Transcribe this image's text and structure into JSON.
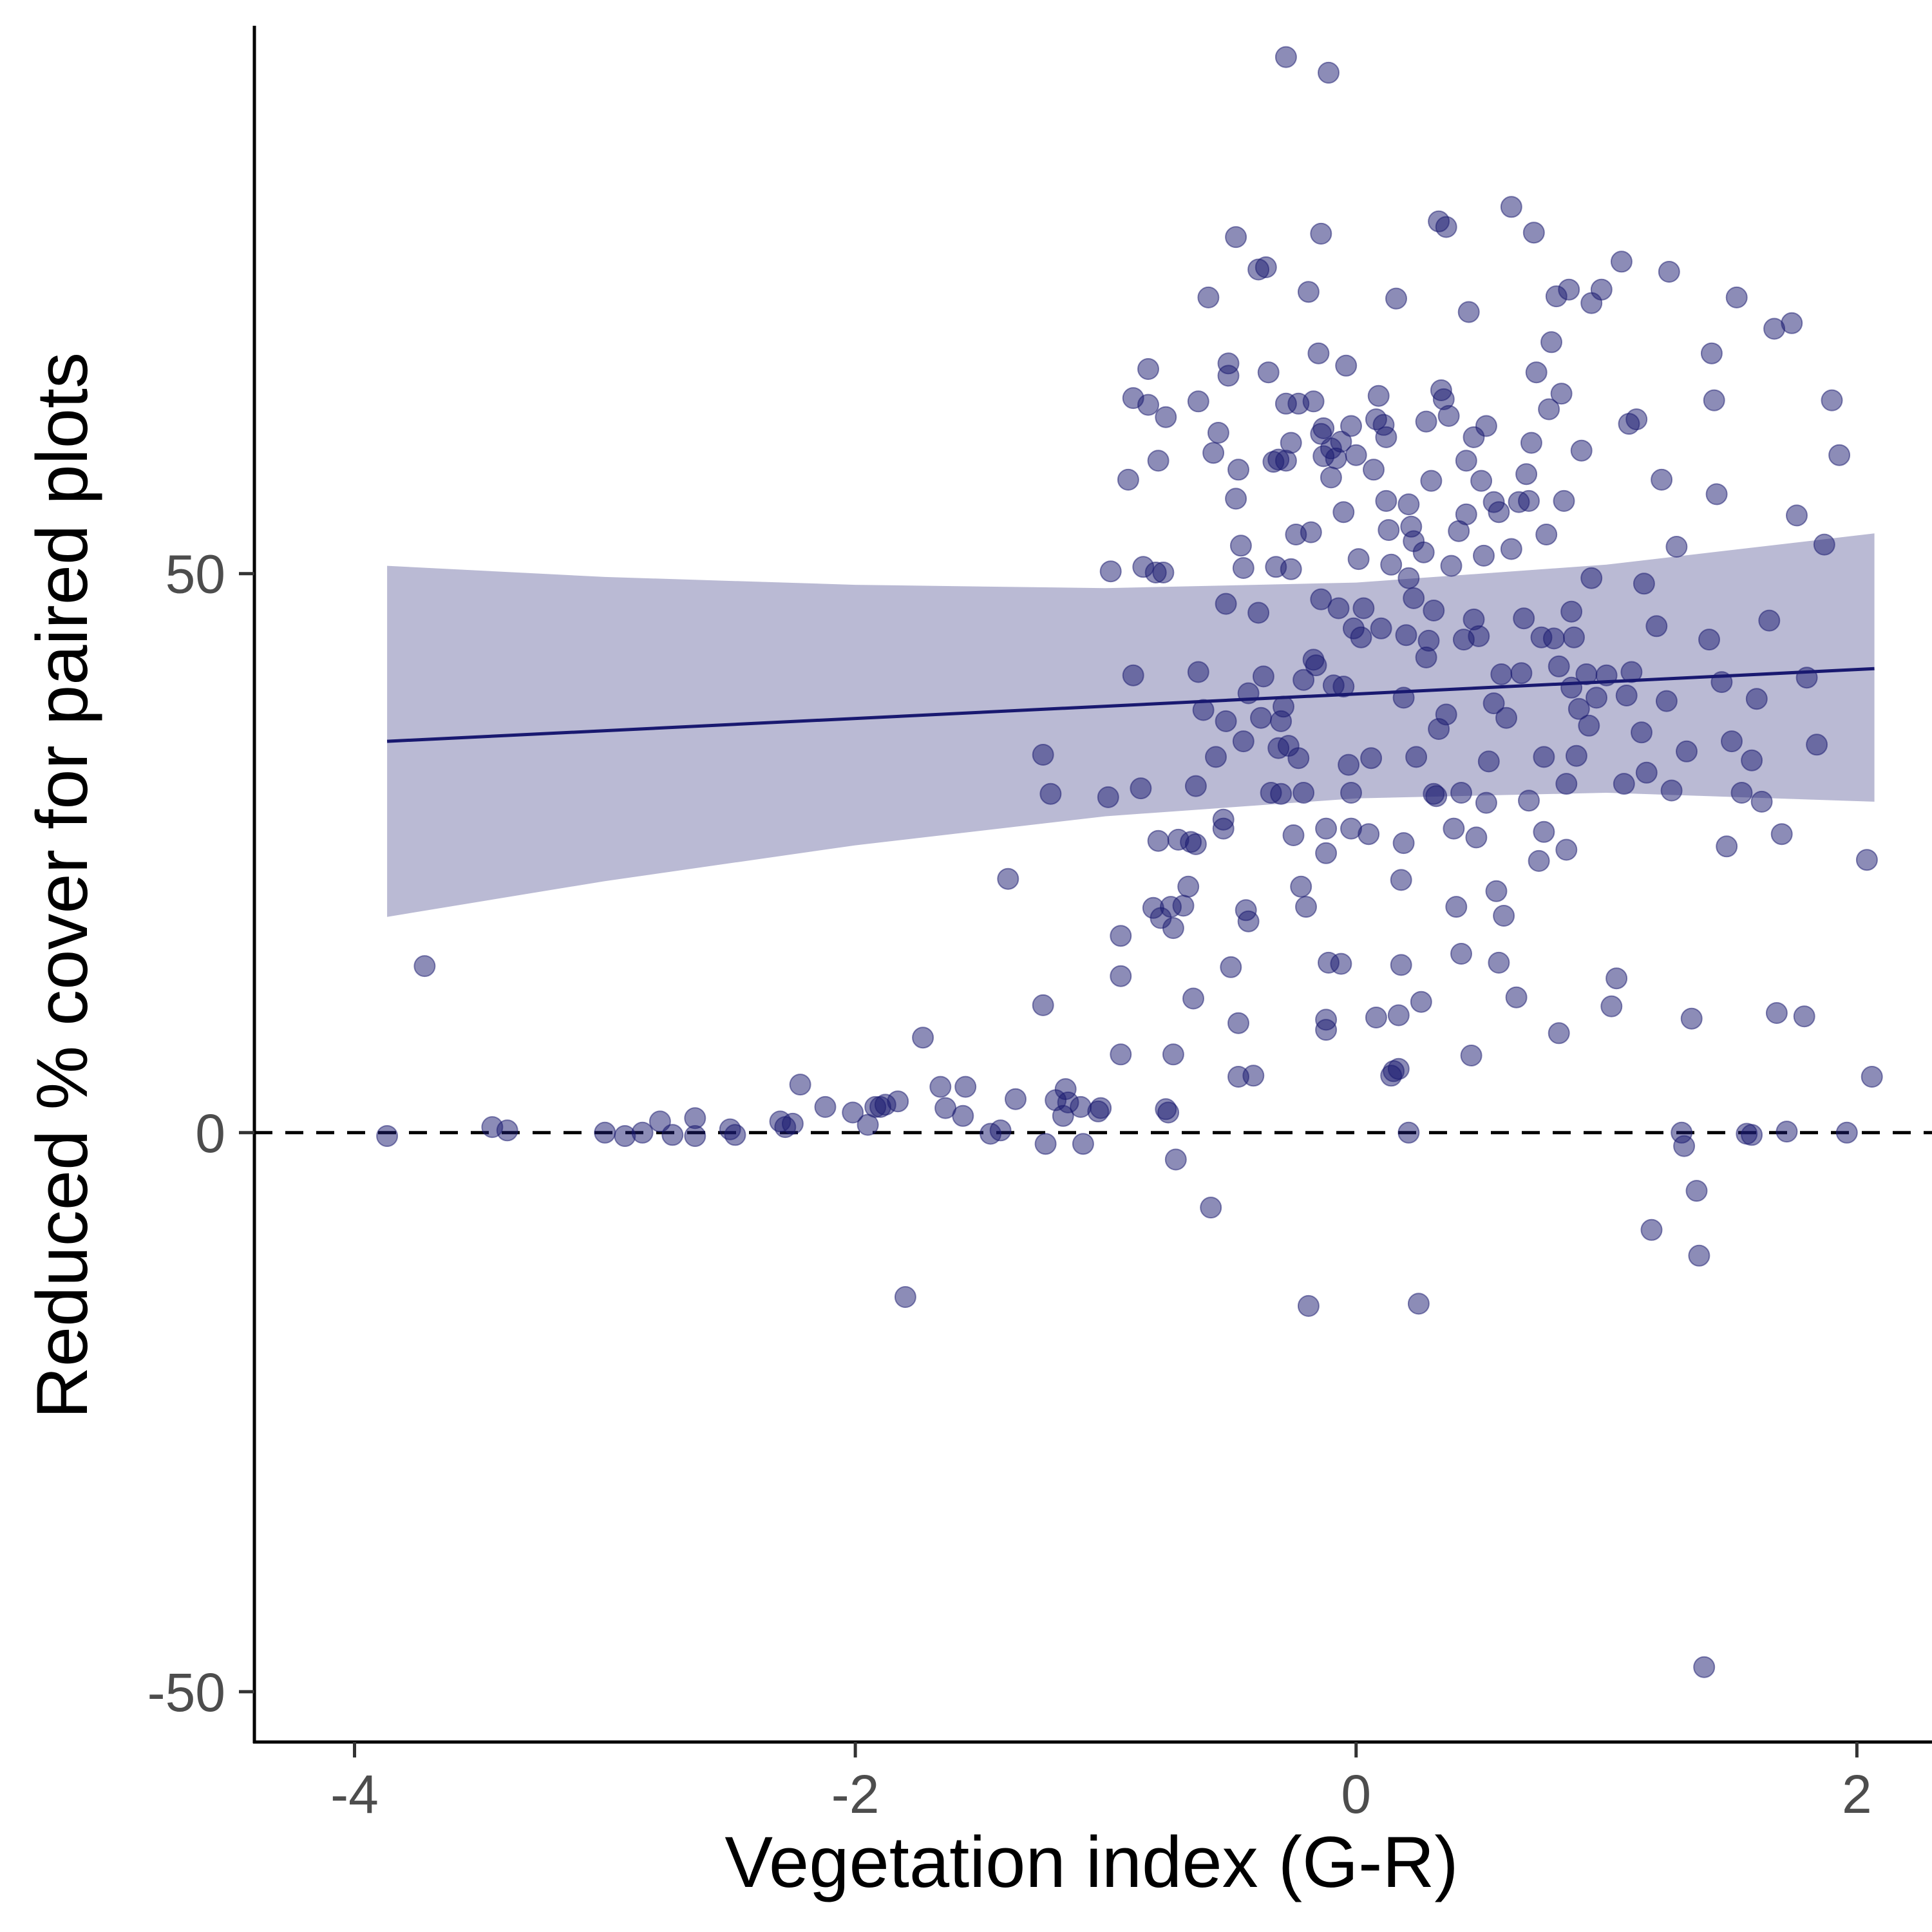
{
  "chart_data": {
    "type": "scatter",
    "xlabel": "Vegetation index (G-R)",
    "ylabel": "Reduced % cover for paired plots",
    "xlim": [
      -4.4,
      2.3
    ],
    "ylim": [
      -54.5,
      99
    ],
    "xticks": [
      -4,
      -2,
      0,
      2
    ],
    "yticks": [
      -50,
      0,
      50
    ],
    "xtick_labels": [
      "-4",
      "-2",
      "0",
      "2"
    ],
    "ytick_labels": [
      "-50",
      "0",
      "50"
    ],
    "grid": false,
    "legend": "none",
    "reference_line": {
      "y": 0,
      "style": "dashed",
      "color": "#000000"
    },
    "trend_line": {
      "x": [
        -3.87,
        2.07
      ],
      "y": [
        35.0,
        41.5
      ],
      "color": "#191970"
    },
    "confidence_band": {
      "x": [
        -3.87,
        -3.0,
        -2.0,
        -1.0,
        0.0,
        1.0,
        2.07
      ],
      "upper": [
        50.7,
        49.7,
        49.0,
        48.7,
        49.2,
        50.8,
        53.6
      ],
      "lower": [
        19.3,
        22.5,
        25.7,
        28.3,
        29.9,
        30.4,
        29.6
      ],
      "color": "#191970",
      "opacity": 0.3
    },
    "point_color": "#191970",
    "point_opacity": 0.5,
    "points": [
      [
        -3.87,
        -0.3
      ],
      [
        -3.72,
        14.9
      ],
      [
        -3.45,
        0.5
      ],
      [
        -3.39,
        0.2
      ],
      [
        -3.0,
        0.0
      ],
      [
        -2.92,
        -0.3
      ],
      [
        -2.85,
        0.0
      ],
      [
        -2.78,
        1.0
      ],
      [
        -2.73,
        -0.2
      ],
      [
        -2.64,
        1.3
      ],
      [
        -2.64,
        -0.3
      ],
      [
        -2.5,
        0.3
      ],
      [
        -2.48,
        -0.2
      ],
      [
        -2.3,
        1.0
      ],
      [
        -2.28,
        0.5
      ],
      [
        -2.25,
        0.8
      ],
      [
        -2.22,
        4.3
      ],
      [
        -2.12,
        2.3
      ],
      [
        -2.01,
        1.8
      ],
      [
        -1.95,
        0.7
      ],
      [
        -1.92,
        2.3
      ],
      [
        -1.9,
        2.3
      ],
      [
        -1.88,
        2.5
      ],
      [
        -1.83,
        2.8
      ],
      [
        -1.8,
        -14.7
      ],
      [
        -1.73,
        8.5
      ],
      [
        -1.66,
        4.1
      ],
      [
        -1.64,
        2.2
      ],
      [
        -1.57,
        1.5
      ],
      [
        -1.56,
        4.1
      ],
      [
        -1.46,
        -0.1
      ],
      [
        -1.42,
        0.2
      ],
      [
        -1.36,
        3.0
      ],
      [
        -1.39,
        22.7
      ],
      [
        -1.25,
        11.4
      ],
      [
        -1.25,
        33.8
      ],
      [
        -1.24,
        -1.0
      ],
      [
        -1.22,
        30.3
      ],
      [
        -1.2,
        2.9
      ],
      [
        -1.17,
        1.5
      ],
      [
        -1.16,
        3.9
      ],
      [
        -1.15,
        2.7
      ],
      [
        -1.1,
        2.3
      ],
      [
        -1.09,
        -1.0
      ],
      [
        -1.03,
        1.9
      ],
      [
        -1.02,
        2.2
      ],
      [
        -0.99,
        30.0
      ],
      [
        -0.98,
        50.2
      ],
      [
        -0.94,
        7.0
      ],
      [
        -0.94,
        14.0
      ],
      [
        -0.94,
        17.6
      ],
      [
        -0.91,
        58.4
      ],
      [
        -0.89,
        40.9
      ],
      [
        -0.89,
        65.7
      ],
      [
        -0.86,
        30.8
      ],
      [
        -0.85,
        50.6
      ],
      [
        -0.83,
        65.1
      ],
      [
        -0.83,
        68.3
      ],
      [
        -0.81,
        20.1
      ],
      [
        -0.8,
        50.1
      ],
      [
        -0.79,
        60.1
      ],
      [
        -0.79,
        26.1
      ],
      [
        -0.78,
        19.2
      ],
      [
        -0.77,
        50.1
      ],
      [
        -0.76,
        64.0
      ],
      [
        -0.76,
        2.1
      ],
      [
        -0.75,
        1.8
      ],
      [
        -0.74,
        20.2
      ],
      [
        -0.73,
        7.0
      ],
      [
        -0.73,
        18.3
      ],
      [
        -0.72,
        -2.4
      ],
      [
        -0.71,
        26.2
      ],
      [
        -0.69,
        20.3
      ],
      [
        -0.67,
        22.0
      ],
      [
        -0.66,
        26.0
      ],
      [
        -0.64,
        25.8
      ],
      [
        -0.65,
        12.0
      ],
      [
        -0.64,
        31.0
      ],
      [
        -0.63,
        65.4
      ],
      [
        -0.63,
        41.2
      ],
      [
        -0.61,
        37.8
      ],
      [
        -0.59,
        74.7
      ],
      [
        -0.58,
        -6.7
      ],
      [
        -0.57,
        60.8
      ],
      [
        -0.56,
        33.6
      ],
      [
        -0.55,
        62.6
      ],
      [
        -0.53,
        28.0
      ],
      [
        -0.53,
        27.2
      ],
      [
        -0.52,
        47.3
      ],
      [
        -0.52,
        36.8
      ],
      [
        -0.51,
        68.8
      ],
      [
        -0.51,
        67.7
      ],
      [
        -0.5,
        14.8
      ],
      [
        -0.48,
        80.1
      ],
      [
        -0.48,
        56.7
      ],
      [
        -0.47,
        59.3
      ],
      [
        -0.47,
        9.8
      ],
      [
        -0.47,
        5.0
      ],
      [
        -0.46,
        52.5
      ],
      [
        -0.45,
        50.5
      ],
      [
        -0.45,
        35.0
      ],
      [
        -0.44,
        19.9
      ],
      [
        -0.43,
        39.3
      ],
      [
        -0.43,
        18.9
      ],
      [
        -0.41,
        5.1
      ],
      [
        -0.39,
        77.2
      ],
      [
        -0.39,
        46.5
      ],
      [
        -0.38,
        37.1
      ],
      [
        -0.37,
        40.8
      ],
      [
        -0.36,
        77.4
      ],
      [
        -0.35,
        68.0
      ],
      [
        -0.34,
        30.4
      ],
      [
        -0.33,
        60.0
      ],
      [
        -0.32,
        50.6
      ],
      [
        -0.31,
        34.4
      ],
      [
        -0.31,
        60.2
      ],
      [
        -0.3,
        36.8
      ],
      [
        -0.3,
        30.3
      ],
      [
        -0.29,
        38.1
      ],
      [
        -0.28,
        96.2
      ],
      [
        -0.28,
        65.2
      ],
      [
        -0.28,
        60.1
      ],
      [
        -0.27,
        34.6
      ],
      [
        -0.26,
        61.7
      ],
      [
        -0.26,
        50.4
      ],
      [
        -0.25,
        26.6
      ],
      [
        -0.24,
        53.5
      ],
      [
        -0.23,
        65.2
      ],
      [
        -0.23,
        33.5
      ],
      [
        -0.22,
        22.0
      ],
      [
        -0.21,
        30.4
      ],
      [
        -0.21,
        40.5
      ],
      [
        -0.2,
        20.2
      ],
      [
        -0.19,
        -15.5
      ],
      [
        -0.19,
        75.2
      ],
      [
        -0.18,
        53.7
      ],
      [
        -0.17,
        65.4
      ],
      [
        -0.17,
        42.3
      ],
      [
        -0.16,
        41.8
      ],
      [
        -0.15,
        69.7
      ],
      [
        -0.14,
        62.5
      ],
      [
        -0.14,
        80.4
      ],
      [
        -0.14,
        47.7
      ],
      [
        -0.13,
        60.5
      ],
      [
        -0.13,
        63.0
      ],
      [
        -0.12,
        10.1
      ],
      [
        -0.12,
        9.2
      ],
      [
        -0.12,
        25.0
      ],
      [
        -0.12,
        27.2
      ],
      [
        -0.11,
        15.2
      ],
      [
        -0.11,
        94.8
      ],
      [
        -0.1,
        61.2
      ],
      [
        -0.1,
        58.6
      ],
      [
        -0.09,
        40.0
      ],
      [
        -0.08,
        60.3
      ],
      [
        -0.07,
        46.9
      ],
      [
        -0.06,
        15.1
      ],
      [
        -0.06,
        61.8
      ],
      [
        -0.05,
        55.5
      ],
      [
        -0.05,
        39.9
      ],
      [
        -0.04,
        68.6
      ],
      [
        -0.03,
        32.9
      ],
      [
        -0.02,
        63.2
      ],
      [
        -0.02,
        27.2
      ],
      [
        -0.02,
        30.4
      ],
      [
        -0.01,
        45.1
      ],
      [
        0.0,
        60.6
      ],
      [
        0.01,
        51.3
      ],
      [
        0.02,
        44.3
      ],
      [
        0.03,
        46.9
      ],
      [
        0.05,
        26.7
      ],
      [
        0.06,
        33.5
      ],
      [
        0.07,
        59.3
      ],
      [
        0.08,
        10.3
      ],
      [
        0.08,
        63.8
      ],
      [
        0.09,
        65.9
      ],
      [
        0.1,
        45.1
      ],
      [
        0.11,
        63.3
      ],
      [
        0.12,
        56.5
      ],
      [
        0.12,
        62.2
      ],
      [
        0.13,
        53.9
      ],
      [
        0.14,
        5.1
      ],
      [
        0.14,
        50.8
      ],
      [
        0.15,
        5.5
      ],
      [
        0.16,
        74.6
      ],
      [
        0.17,
        5.7
      ],
      [
        0.17,
        10.5
      ],
      [
        0.18,
        15.0
      ],
      [
        0.18,
        22.6
      ],
      [
        0.19,
        25.9
      ],
      [
        0.19,
        38.9
      ],
      [
        0.2,
        44.5
      ],
      [
        0.21,
        0.0
      ],
      [
        0.21,
        49.6
      ],
      [
        0.21,
        56.2
      ],
      [
        0.22,
        54.2
      ],
      [
        0.23,
        52.9
      ],
      [
        0.23,
        47.8
      ],
      [
        0.24,
        33.6
      ],
      [
        0.25,
        -15.3
      ],
      [
        0.26,
        11.7
      ],
      [
        0.27,
        51.9
      ],
      [
        0.28,
        63.6
      ],
      [
        0.28,
        42.5
      ],
      [
        0.29,
        44.0
      ],
      [
        0.3,
        58.3
      ],
      [
        0.31,
        46.7
      ],
      [
        0.31,
        30.3
      ],
      [
        0.32,
        30.1
      ],
      [
        0.33,
        36.1
      ],
      [
        0.33,
        81.5
      ],
      [
        0.34,
        66.4
      ],
      [
        0.35,
        65.6
      ],
      [
        0.36,
        37.4
      ],
      [
        0.36,
        81.0
      ],
      [
        0.37,
        64.1
      ],
      [
        0.38,
        50.7
      ],
      [
        0.39,
        27.2
      ],
      [
        0.4,
        20.2
      ],
      [
        0.41,
        53.8
      ],
      [
        0.42,
        16.0
      ],
      [
        0.42,
        30.4
      ],
      [
        0.43,
        44.1
      ],
      [
        0.44,
        55.3
      ],
      [
        0.44,
        60.1
      ],
      [
        0.45,
        73.4
      ],
      [
        0.46,
        6.9
      ],
      [
        0.47,
        62.2
      ],
      [
        0.47,
        45.9
      ],
      [
        0.48,
        26.4
      ],
      [
        0.49,
        44.4
      ],
      [
        0.5,
        58.3
      ],
      [
        0.51,
        51.6
      ],
      [
        0.52,
        63.2
      ],
      [
        0.52,
        29.5
      ],
      [
        0.53,
        33.2
      ],
      [
        0.55,
        56.4
      ],
      [
        0.55,
        38.4
      ],
      [
        0.56,
        21.6
      ],
      [
        0.57,
        15.2
      ],
      [
        0.57,
        55.5
      ],
      [
        0.58,
        41.0
      ],
      [
        0.59,
        19.4
      ],
      [
        0.6,
        37.1
      ],
      [
        0.62,
        52.2
      ],
      [
        0.62,
        82.8
      ],
      [
        0.64,
        12.1
      ],
      [
        0.65,
        56.4
      ],
      [
        0.66,
        41.1
      ],
      [
        0.67,
        46.0
      ],
      [
        0.68,
        58.9
      ],
      [
        0.69,
        56.5
      ],
      [
        0.69,
        29.7
      ],
      [
        0.7,
        61.7
      ],
      [
        0.71,
        80.5
      ],
      [
        0.72,
        68.0
      ],
      [
        0.73,
        24.3
      ],
      [
        0.74,
        44.3
      ],
      [
        0.75,
        33.6
      ],
      [
        0.75,
        26.9
      ],
      [
        0.76,
        53.5
      ],
      [
        0.77,
        64.7
      ],
      [
        0.78,
        70.7
      ],
      [
        0.79,
        44.2
      ],
      [
        0.8,
        74.8
      ],
      [
        0.81,
        41.7
      ],
      [
        0.81,
        8.9
      ],
      [
        0.82,
        66.1
      ],
      [
        0.83,
        56.5
      ],
      [
        0.84,
        25.3
      ],
      [
        0.84,
        31.2
      ],
      [
        0.85,
        75.4
      ],
      [
        0.86,
        46.6
      ],
      [
        0.86,
        39.8
      ],
      [
        0.87,
        44.3
      ],
      [
        0.88,
        33.7
      ],
      [
        0.89,
        37.9
      ],
      [
        0.9,
        61.0
      ],
      [
        0.92,
        41.0
      ],
      [
        0.93,
        36.4
      ],
      [
        0.94,
        74.2
      ],
      [
        0.94,
        49.6
      ],
      [
        0.96,
        38.9
      ],
      [
        0.98,
        75.4
      ],
      [
        1.0,
        40.9
      ],
      [
        1.02,
        11.3
      ],
      [
        1.04,
        13.8
      ],
      [
        1.06,
        77.9
      ],
      [
        1.07,
        31.2
      ],
      [
        1.08,
        39.1
      ],
      [
        1.09,
        63.4
      ],
      [
        1.1,
        41.2
      ],
      [
        1.12,
        63.8
      ],
      [
        1.14,
        35.8
      ],
      [
        1.15,
        49.1
      ],
      [
        1.16,
        32.2
      ],
      [
        1.18,
        -8.7
      ],
      [
        1.2,
        45.3
      ],
      [
        1.22,
        58.4
      ],
      [
        1.24,
        38.6
      ],
      [
        1.25,
        77.0
      ],
      [
        1.26,
        30.6
      ],
      [
        1.28,
        52.4
      ],
      [
        1.3,
        0.0
      ],
      [
        1.31,
        -1.2
      ],
      [
        1.32,
        34.1
      ],
      [
        1.34,
        10.2
      ],
      [
        1.36,
        -5.2
      ],
      [
        1.37,
        -11.0
      ],
      [
        1.39,
        -47.8
      ],
      [
        1.41,
        44.1
      ],
      [
        1.42,
        69.7
      ],
      [
        1.43,
        65.5
      ],
      [
        1.44,
        57.1
      ],
      [
        1.46,
        40.3
      ],
      [
        1.48,
        25.6
      ],
      [
        1.5,
        35.0
      ],
      [
        1.52,
        74.7
      ],
      [
        1.54,
        30.4
      ],
      [
        1.56,
        -0.1
      ],
      [
        1.58,
        33.3
      ],
      [
        1.6,
        38.8
      ],
      [
        1.62,
        29.6
      ],
      [
        1.65,
        45.8
      ],
      [
        1.67,
        71.9
      ],
      [
        1.68,
        10.7
      ],
      [
        1.7,
        26.7
      ],
      [
        1.72,
        0.1
      ],
      [
        1.74,
        72.4
      ],
      [
        1.76,
        55.2
      ],
      [
        1.79,
        10.4
      ],
      [
        1.8,
        40.7
      ],
      [
        1.84,
        34.7
      ],
      [
        1.87,
        52.6
      ],
      [
        1.9,
        65.5
      ],
      [
        1.93,
        60.6
      ],
      [
        1.96,
        0.0
      ],
      [
        2.04,
        24.4
      ],
      [
        2.06,
        5.0
      ],
      [
        1.58,
        -0.2
      ]
    ]
  }
}
